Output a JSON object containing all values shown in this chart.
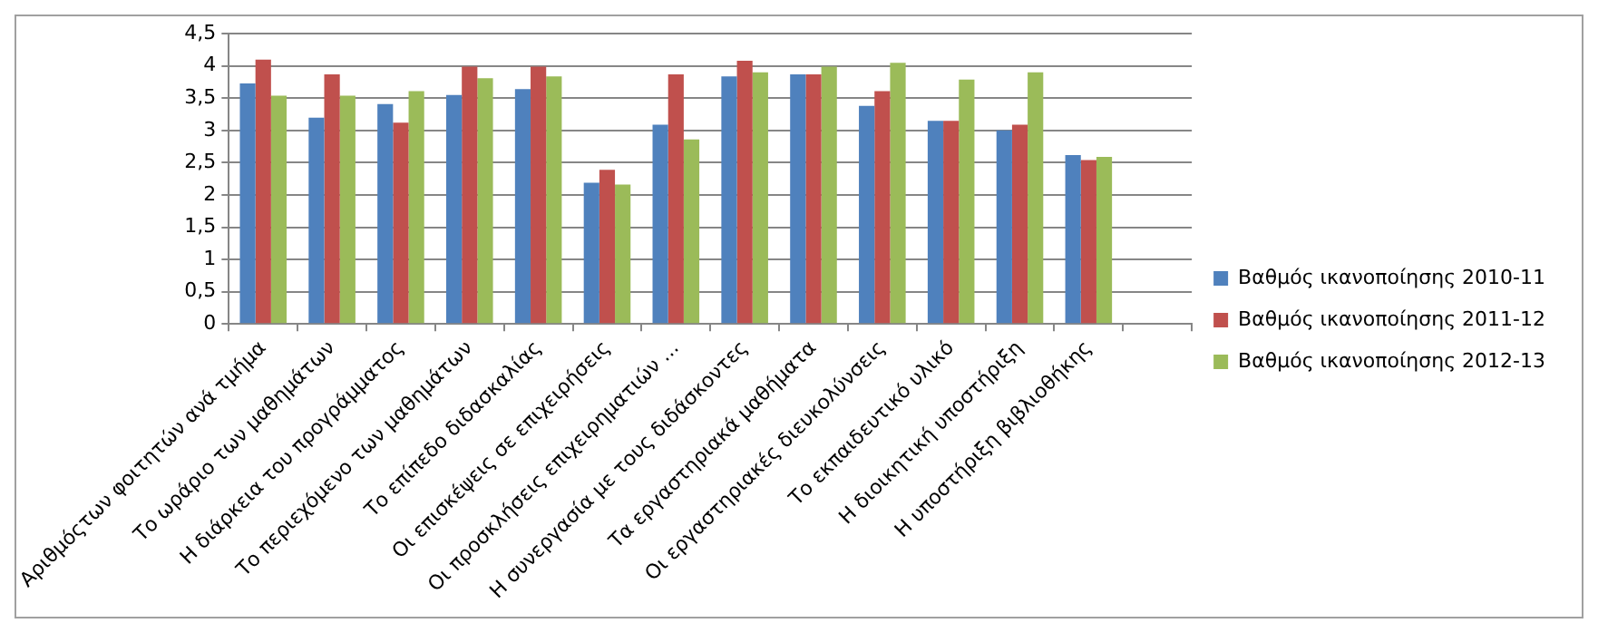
{
  "chart_data": {
    "type": "bar",
    "categories": [
      "Αριθμόςτων φοιτητών ανά τμήμα",
      "Το ωράριο των μαθημάτων",
      "Η διάρκεια του προγράμματος",
      "Το περιεχόμενο των μαθημάτων",
      "Το επίπεδο διδασκαλίας",
      "Οι επισκέψεις σε επιχειρήσεις",
      "Οι προσκλήσεις επιχειρηματιών ...",
      "Η συνεργασία με τους διδάσκοντες",
      "Τα εργαστηριακά μαθήματα",
      "Οι εργαστηριακές διευκολύνσεις",
      "Το εκπαιδευτικό υλικό",
      "Η διοικητική υποστήριξη",
      "Η υποστήριξη βιβλιοθήκης",
      null
    ],
    "series": [
      {
        "name": "Βαθμός ικανοποίησης 2010-11",
        "color": "#4f81bd",
        "values": [
          3.73,
          3.2,
          3.41,
          3.55,
          3.64,
          2.19,
          3.09,
          3.84,
          3.87,
          3.38,
          3.15,
          3.0,
          2.62,
          null
        ]
      },
      {
        "name": "Βαθμός ικανοποίησης 2011-12",
        "color": "#c0504d",
        "values": [
          4.1,
          3.87,
          3.12,
          3.99,
          3.99,
          2.39,
          3.87,
          4.08,
          3.87,
          3.61,
          3.15,
          3.09,
          2.54,
          null
        ]
      },
      {
        "name": "Βαθμός ικανοποίησης 2012-13",
        "color": "#9bbb59",
        "values": [
          3.54,
          3.54,
          3.61,
          3.81,
          3.84,
          2.16,
          2.86,
          3.9,
          3.99,
          4.05,
          3.79,
          3.9,
          2.59,
          null
        ]
      }
    ],
    "ylim": [
      0,
      4.5
    ],
    "yticks": [
      0,
      {
        "value": 0.5,
        "label": "0,5"
      },
      1,
      {
        "value": 1.5,
        "label": "1,5"
      },
      2,
      {
        "value": 2.5,
        "label": "2,5"
      },
      3,
      {
        "value": 3.5,
        "label": "3,5"
      },
      4,
      {
        "value": 4.5,
        "label": "4,5"
      }
    ],
    "grid": "y",
    "legend": "right"
  }
}
